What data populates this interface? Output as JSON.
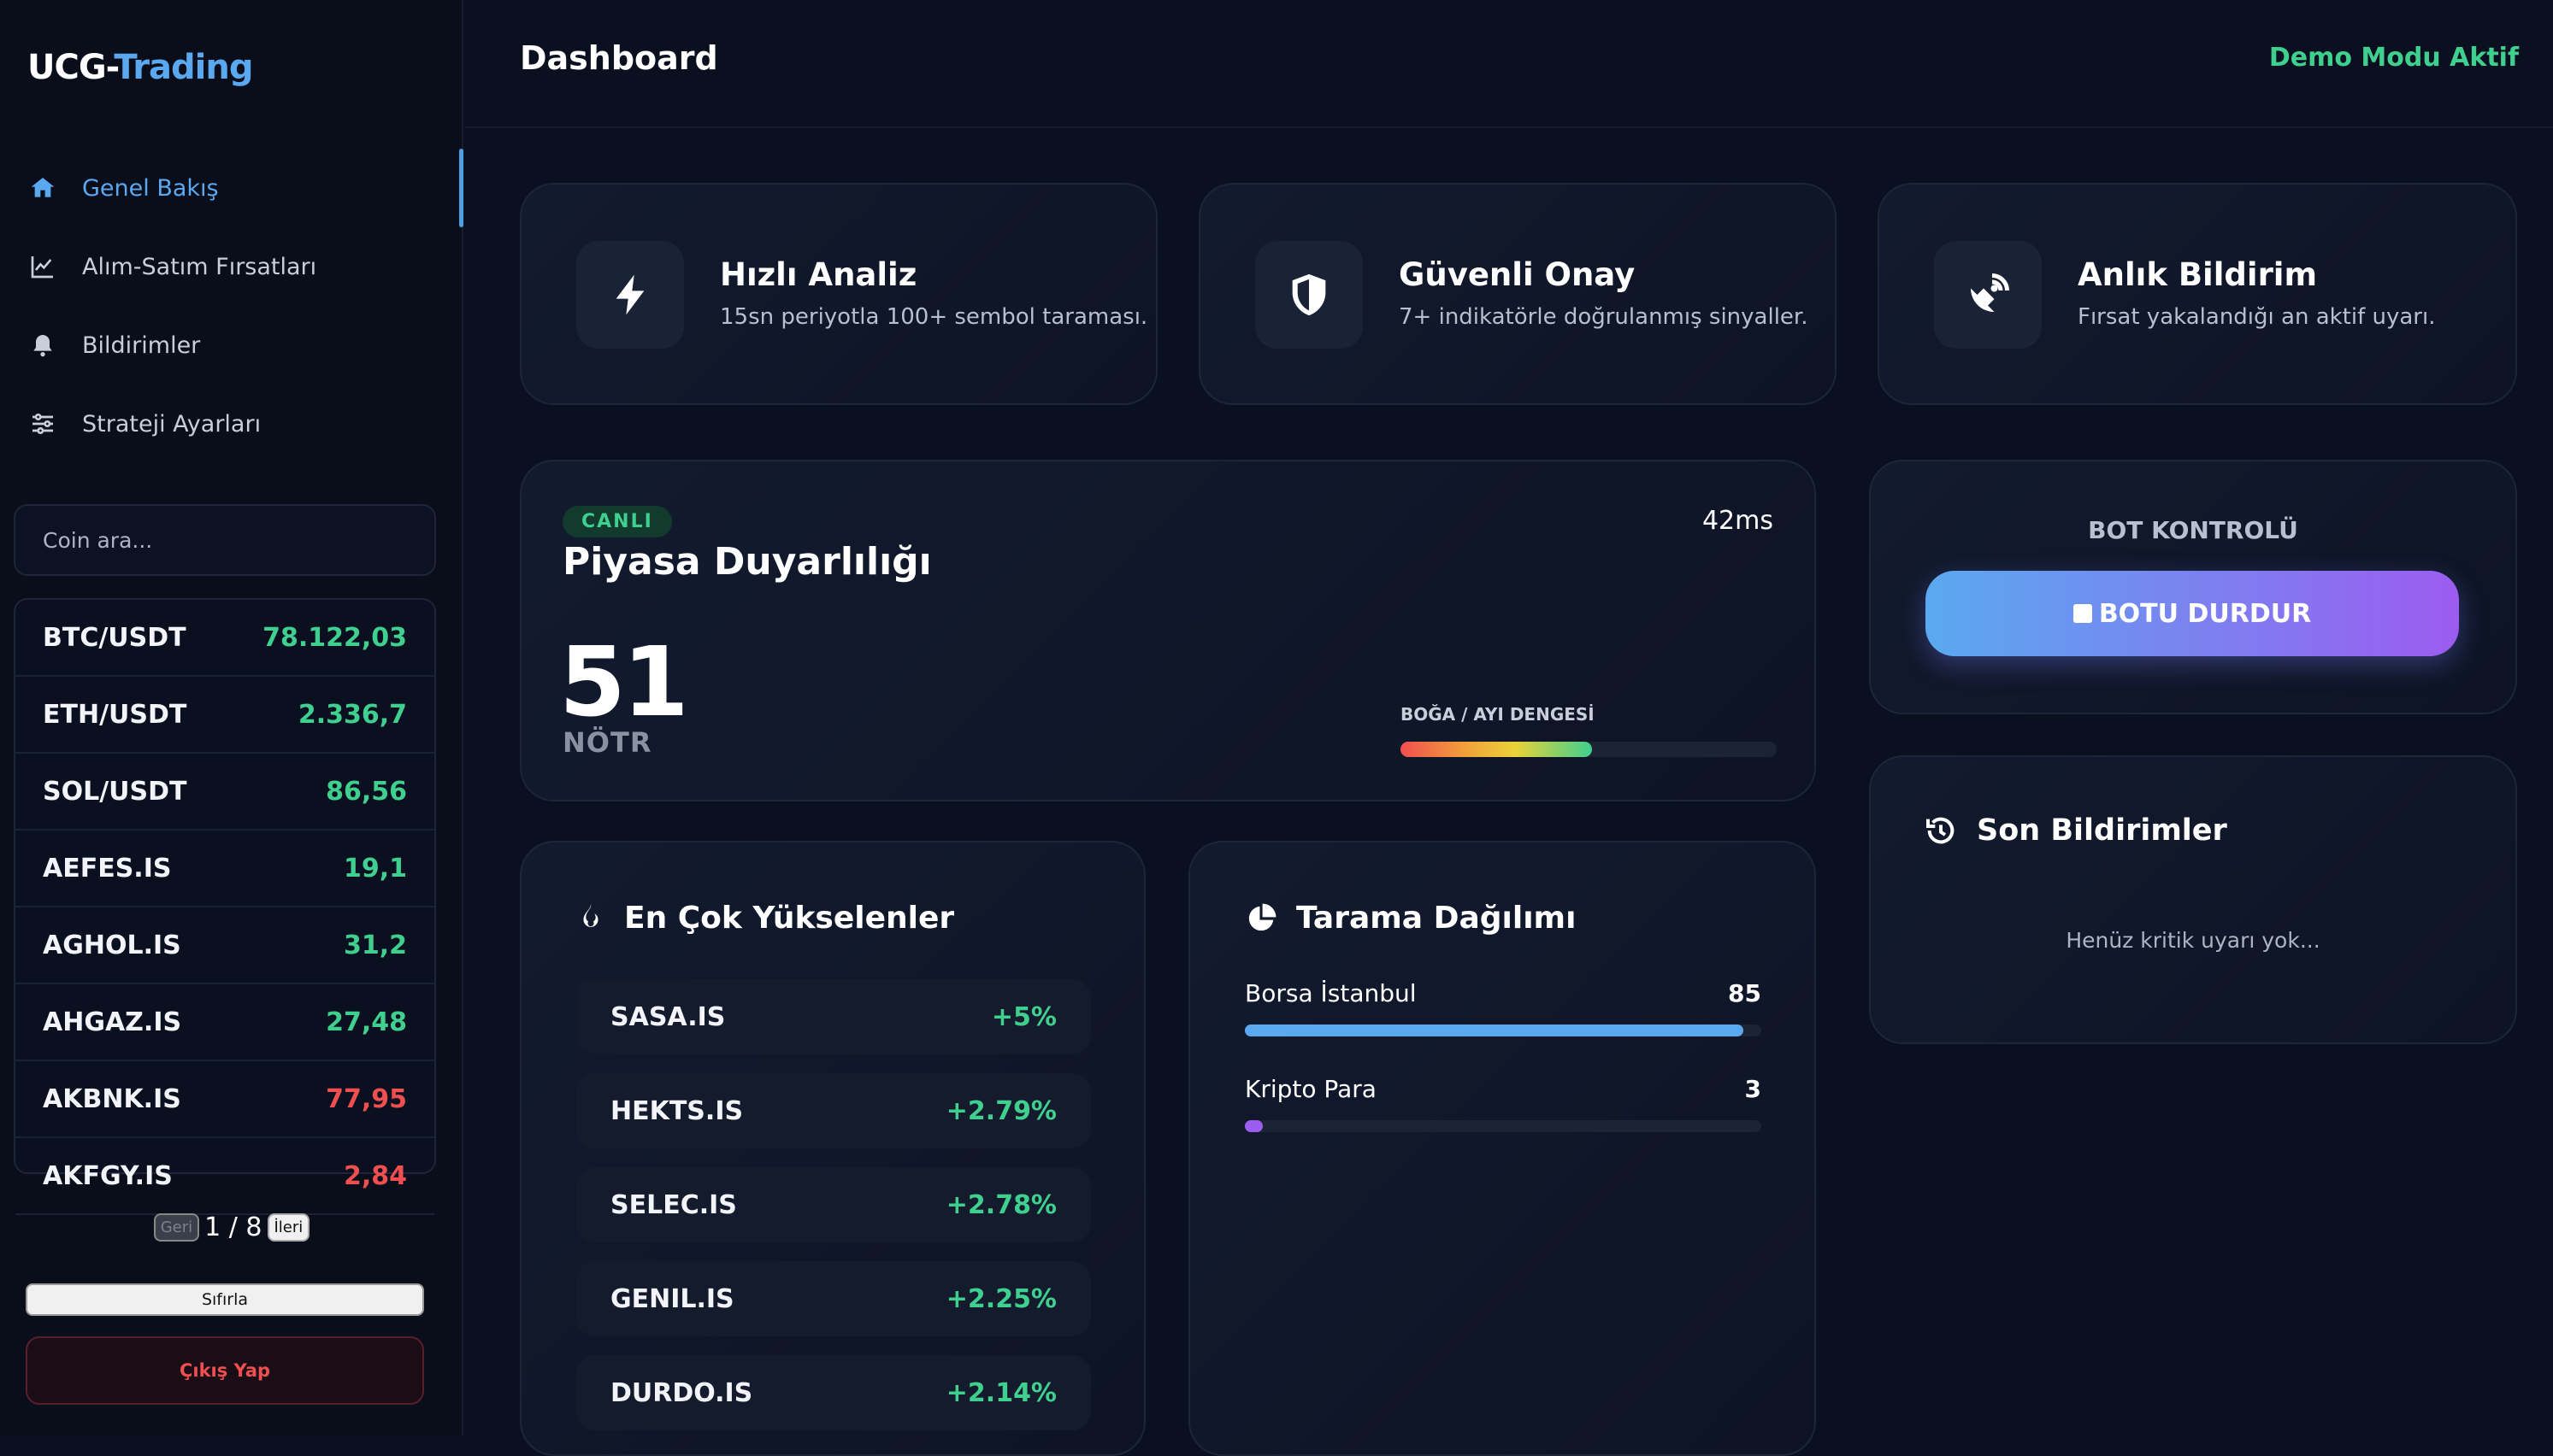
{
  "sidebar": {
    "logo_part1": "UCG-",
    "logo_part2": "Trading",
    "nav": [
      {
        "label": "Genel Bakış",
        "icon": "home-icon",
        "active": true
      },
      {
        "label": "Alım-Satım Fırsatları",
        "icon": "chart-line-icon",
        "active": false
      },
      {
        "label": "Bildirimler",
        "icon": "bell-icon",
        "active": false
      },
      {
        "label": "Strateji Ayarları",
        "icon": "sliders-icon",
        "active": false
      }
    ],
    "search_placeholder": "Coin ara...",
    "coins": [
      {
        "symbol": "BTC/USDT",
        "price": "78.122,03",
        "trend": "up"
      },
      {
        "symbol": "ETH/USDT",
        "price": "2.336,7",
        "trend": "up"
      },
      {
        "symbol": "SOL/USDT",
        "price": "86,56",
        "trend": "up"
      },
      {
        "symbol": "AEFES.IS",
        "price": "19,1",
        "trend": "up"
      },
      {
        "symbol": "AGHOL.IS",
        "price": "31,2",
        "trend": "up"
      },
      {
        "symbol": "AHGAZ.IS",
        "price": "27,48",
        "trend": "up"
      },
      {
        "symbol": "AKBNK.IS",
        "price": "77,95",
        "trend": "down"
      },
      {
        "symbol": "AKFGY.IS",
        "price": "2,84",
        "trend": "down"
      }
    ],
    "pager": {
      "prev": "Geri",
      "page": "1 / 8",
      "next": "İleri"
    },
    "reset_label": "Sıfırla",
    "logout_label": "Çıkış Yap"
  },
  "header": {
    "title": "Dashboard",
    "demo_status": "Demo Modu Aktif"
  },
  "features": [
    {
      "title": "Hızlı Analiz",
      "desc": "15sn periyotla 100+ sembol taraması.",
      "icon": "bolt-icon"
    },
    {
      "title": "Güvenli Onay",
      "desc": "7+ indikatörle doğrulanmış sinyaller.",
      "icon": "shield-icon"
    },
    {
      "title": "Anlık Bildirim",
      "desc": "Fırsat yakalandığı an aktif uyarı.",
      "icon": "satellite-dish-icon"
    }
  ],
  "sentiment": {
    "badge": "CANLI",
    "latency": "42ms",
    "title": "Piyasa Duyarlılığı",
    "value": "51",
    "label": "NÖTR",
    "balance_label": "BOĞA / AYI DENGESİ",
    "balance_fraction": 0.51
  },
  "top_movers": {
    "title": "En Çok Yükselenler",
    "items": [
      {
        "symbol": "SASA.IS",
        "change": "+5%"
      },
      {
        "symbol": "HEKTS.IS",
        "change": "+2.79%"
      },
      {
        "symbol": "SELEC.IS",
        "change": "+2.78%"
      },
      {
        "symbol": "GENIL.IS",
        "change": "+2.25%"
      },
      {
        "symbol": "DURDO.IS",
        "change": "+2.14%"
      }
    ]
  },
  "scan_distribution": {
    "title": "Tarama Dağılımı",
    "rows": [
      {
        "label": "Borsa İstanbul",
        "count": "85",
        "value": 85,
        "color": "#5aa9f0"
      },
      {
        "label": "Kripto Para",
        "count": "3",
        "value": 3,
        "color": "#9b5cf0"
      }
    ],
    "max": 88
  },
  "bot": {
    "title": "BOT KONTROLÜ",
    "stop_label": "BOTU DURDUR"
  },
  "notifications": {
    "title": "Son Bildirimler",
    "empty": "Henüz kritik uyarı yok..."
  },
  "colors": {
    "accent": "#5aa9f0",
    "up": "#3fcf8e",
    "down": "#ef4f4f",
    "purple": "#9b5cf0"
  }
}
